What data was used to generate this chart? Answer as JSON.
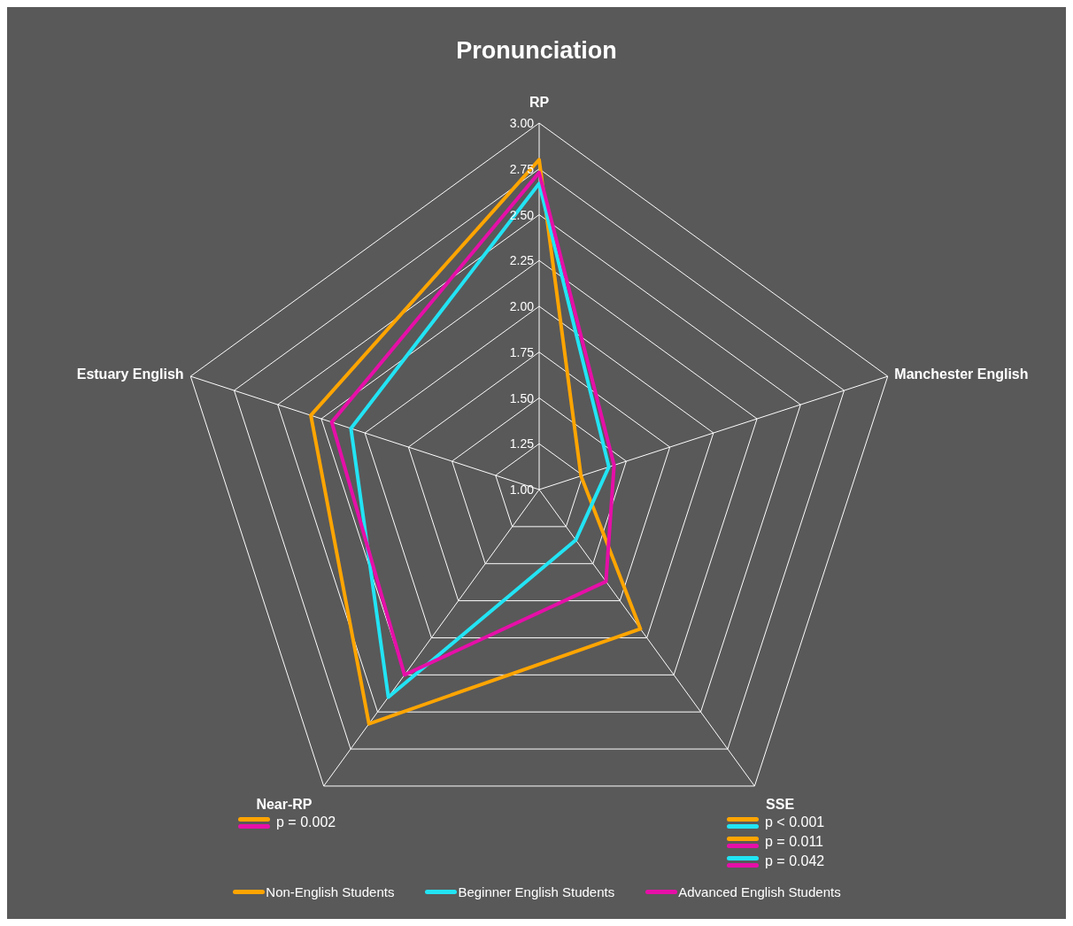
{
  "chart_data": {
    "type": "radar",
    "title": "Pronunciation",
    "categories": [
      "RP",
      "Manchester English",
      "SSE",
      "Near-RP",
      "Estuary English"
    ],
    "series": [
      {
        "name": "Non-English Students",
        "color": "#ffa500",
        "values": [
          2.8,
          1.24,
          1.94,
          2.58,
          2.31
        ]
      },
      {
        "name": "Beginner English Students",
        "color": "#22e4f4",
        "values": [
          2.67,
          1.4,
          1.34,
          2.4,
          2.08
        ]
      },
      {
        "name": "Advanced English Students",
        "color": "#e60fa8",
        "values": [
          2.73,
          1.43,
          1.62,
          2.25,
          2.19
        ]
      }
    ],
    "ylim": [
      1,
      3
    ],
    "yticks": [
      {
        "value": 1,
        "label": "1.00"
      },
      {
        "value": 1.25,
        "label": "1.25"
      },
      {
        "value": 1.5,
        "label": "1.50"
      },
      {
        "value": 1.75,
        "label": "1.75"
      },
      {
        "value": 2,
        "label": "2.00"
      },
      {
        "value": 2.25,
        "label": "2.25"
      },
      {
        "value": 2.5,
        "label": "2.50"
      },
      {
        "value": 2.75,
        "label": "2.75"
      },
      {
        "value": 3,
        "label": "3.00"
      }
    ],
    "grid": true,
    "legend": "bottom",
    "marker": "none",
    "line_style": "solid",
    "annotations": [
      "p = 0.002",
      "p < 0.001",
      "p = 0.011",
      "p = 0.042"
    ]
  }
}
